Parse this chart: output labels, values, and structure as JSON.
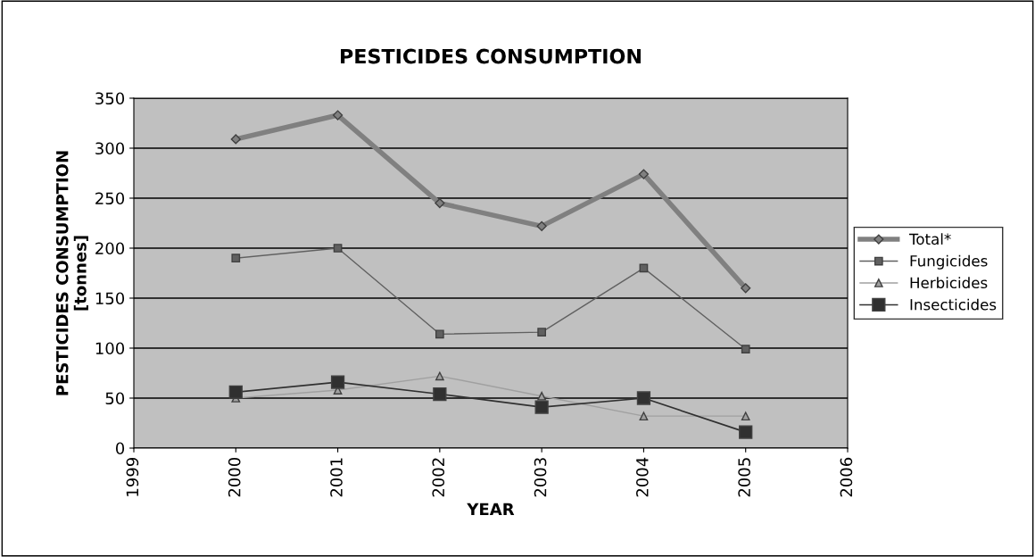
{
  "chart_data": {
    "type": "line",
    "title": "PESTICIDES CONSUMPTION",
    "xlabel": "YEAR",
    "ylabel": "PESTICIDES CONSUMPTION\n[tonnes]",
    "x": [
      2000,
      2001,
      2002,
      2003,
      2004,
      2005
    ],
    "series": [
      {
        "name": "Total*",
        "color": "#808080",
        "marker": "diamond",
        "values": [
          309,
          333,
          245,
          222,
          274,
          160
        ]
      },
      {
        "name": "Fungicides",
        "color": "#606060",
        "marker": "square",
        "values": [
          190,
          200,
          114,
          116,
          180,
          99
        ]
      },
      {
        "name": "Herbicides",
        "color": "#a0a0a0",
        "marker": "triangle",
        "values": [
          50,
          58,
          72,
          52,
          32,
          32
        ]
      },
      {
        "name": "Insecticides",
        "color": "#303030",
        "marker": "square",
        "values": [
          56,
          66,
          54,
          41,
          50,
          16
        ]
      }
    ],
    "xlim": [
      1999,
      2006
    ],
    "xticks": [
      1999,
      2000,
      2001,
      2002,
      2003,
      2004,
      2005,
      2006
    ],
    "ylim": [
      0,
      350
    ],
    "yticks": [
      0,
      50,
      100,
      150,
      200,
      250,
      300,
      350
    ],
    "grid": "y",
    "legend": "right"
  }
}
